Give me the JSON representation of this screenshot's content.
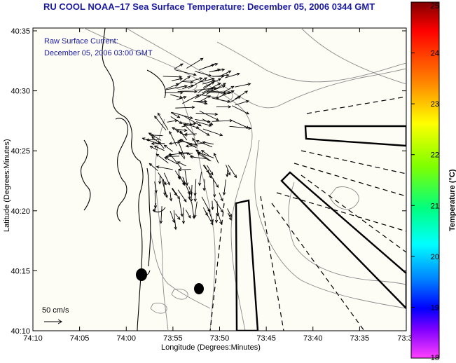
{
  "title": "RU COOL  NOAA−17  Sea Surface Temperature:  December 05, 2006 0344 GMT",
  "annotation": {
    "line1": "Raw Surface Current:",
    "line2": "December 05, 2006 03:00 GMT"
  },
  "axes": {
    "xlabel": "Longitude (Degrees:Minutes)",
    "ylabel": "Latitude (Degrees:Minutes)",
    "x_ticks": [
      "74:10",
      "74:05",
      "74:00",
      "73:55",
      "73:50",
      "73:45",
      "73:40",
      "73:35",
      "73:3"
    ],
    "y_ticks": [
      "40:35",
      "40:30",
      "40:25",
      "40:20",
      "40:15",
      "40:10"
    ]
  },
  "scale": {
    "label": "50 cm/s"
  },
  "colorbar": {
    "label": "Temperature (°C)",
    "ticks": [
      "25",
      "24",
      "23",
      "22",
      "21",
      "20",
      "19",
      "18"
    ],
    "min": 18,
    "max": 25
  },
  "colors": {
    "title": "#1a1aa0",
    "background": "#ffffff",
    "land_fill": "#fdfdf6",
    "coast": "#000000",
    "bathy": "#8a8a8a",
    "vectors": "#000000"
  },
  "map_data": {
    "lon_range_deg": [
      -74.1667,
      -73.5
    ],
    "lat_range_deg": [
      40.1667,
      40.5833
    ],
    "features": [
      "coastline",
      "bathymetry contours",
      "surface current vectors",
      "channel outlines",
      "dumping sites"
    ]
  }
}
